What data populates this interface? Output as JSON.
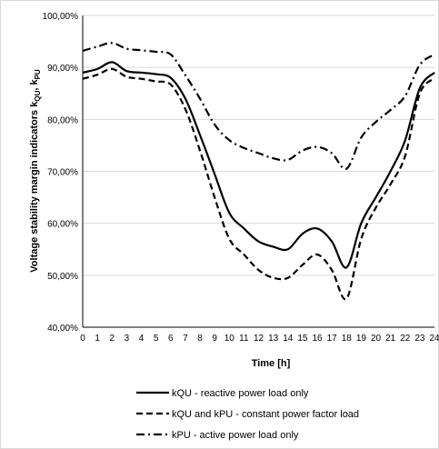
{
  "chart_data": {
    "type": "line",
    "xlabel": "Time [h]",
    "ylabel": "Voltage stability margin indicators k",
    "ylabel_sub1": "QU",
    "ylabel_sep": ", k",
    "ylabel_sub2": "PU",
    "x": [
      0,
      1,
      2,
      3,
      4,
      5,
      6,
      7,
      8,
      9,
      10,
      11,
      12,
      13,
      14,
      15,
      16,
      17,
      18,
      19,
      20,
      21,
      22,
      23,
      24
    ],
    "xticks": [
      "0",
      "1",
      "2",
      "3",
      "4",
      "5",
      "6",
      "7",
      "8",
      "9",
      "10",
      "11",
      "12",
      "13",
      "14",
      "15",
      "16",
      "17",
      "18",
      "19",
      "20",
      "21",
      "22",
      "23",
      "24"
    ],
    "ylim": [
      0.4,
      1.0
    ],
    "yticks": [
      {
        "v": 0.4,
        "label": "40,00%"
      },
      {
        "v": 0.5,
        "label": "50,00%"
      },
      {
        "v": 0.6,
        "label": "60,00%"
      },
      {
        "v": 0.7,
        "label": "70,00%"
      },
      {
        "v": 0.8,
        "label": "80,00%"
      },
      {
        "v": 0.9,
        "label": "90,00%"
      },
      {
        "v": 1.0,
        "label": "100,00%"
      }
    ],
    "grid": "horizontal",
    "legend_position": "bottom",
    "series": [
      {
        "name": "kQU - reactive power load only",
        "dash": "solid",
        "values": [
          0.89,
          0.897,
          0.91,
          0.893,
          0.89,
          0.887,
          0.88,
          0.84,
          0.77,
          0.695,
          0.62,
          0.59,
          0.565,
          0.555,
          0.55,
          0.58,
          0.59,
          0.565,
          0.515,
          0.6,
          0.65,
          0.7,
          0.76,
          0.86,
          0.89
        ]
      },
      {
        "name": "kQU and kPU - constant power factor load",
        "dash": "dash",
        "values": [
          0.878,
          0.886,
          0.897,
          0.882,
          0.878,
          0.873,
          0.867,
          0.82,
          0.74,
          0.65,
          0.57,
          0.54,
          0.51,
          0.495,
          0.495,
          0.52,
          0.54,
          0.51,
          0.455,
          0.57,
          0.63,
          0.675,
          0.73,
          0.85,
          0.879
        ]
      },
      {
        "name": "kPU - active power load only",
        "dash": "dashdot",
        "values": [
          0.932,
          0.94,
          0.947,
          0.936,
          0.933,
          0.93,
          0.925,
          0.885,
          0.84,
          0.79,
          0.76,
          0.745,
          0.735,
          0.725,
          0.722,
          0.74,
          0.747,
          0.735,
          0.705,
          0.765,
          0.795,
          0.818,
          0.845,
          0.905,
          0.925
        ]
      }
    ]
  }
}
